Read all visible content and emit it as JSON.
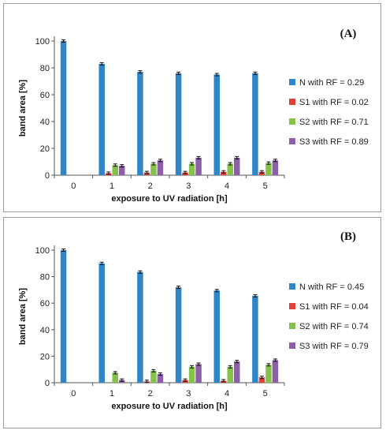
{
  "chart_data": [
    {
      "type": "bar",
      "panel_label": "(A)",
      "categories": [
        "0",
        "1",
        "2",
        "3",
        "4",
        "5"
      ],
      "series": [
        {
          "name": "N with RF = 0.29",
          "color": "#2e86c9",
          "values": [
            100,
            83,
            77,
            76,
            75,
            76
          ]
        },
        {
          "name": "S1 with RF = 0.02",
          "color": "#e2413a",
          "values": [
            0,
            1.5,
            2,
            2,
            2.5,
            2.5
          ]
        },
        {
          "name": "S2 with RF = 0.71",
          "color": "#86c24a",
          "values": [
            0,
            7.5,
            8.5,
            8.5,
            8.5,
            9
          ]
        },
        {
          "name": "S3 with RF = 0.89",
          "color": "#8c5fa8",
          "values": [
            0,
            7,
            11,
            13,
            13,
            11
          ]
        }
      ],
      "xlabel": "exposure to UV radiation [h]",
      "ylabel": "band area [%]",
      "ylim": [
        0,
        100
      ],
      "yticks": [
        0,
        20,
        40,
        60,
        80,
        100
      ],
      "legend_position": "right",
      "error_bars": true
    },
    {
      "type": "bar",
      "panel_label": "(B)",
      "categories": [
        "0",
        "1",
        "2",
        "3",
        "4",
        "5"
      ],
      "series": [
        {
          "name": "N with RF = 0.45",
          "color": "#2e86c9",
          "values": [
            100,
            90,
            83.5,
            72,
            69.5,
            65.5
          ]
        },
        {
          "name": "S1 with RF = 0.04",
          "color": "#e2413a",
          "values": [
            0,
            0,
            1,
            2,
            1.5,
            4
          ]
        },
        {
          "name": "S2 with RF = 0.74",
          "color": "#86c24a",
          "values": [
            0,
            7.5,
            9,
            12,
            12,
            13.5
          ]
        },
        {
          "name": "S3 with RF = 0.79",
          "color": "#8c5fa8",
          "values": [
            0,
            2,
            6.5,
            14,
            16,
            17
          ]
        }
      ],
      "xlabel": "exposure to UV radiation [h]",
      "ylabel": "band area [%]",
      "ylim": [
        0,
        100
      ],
      "yticks": [
        0,
        20,
        40,
        60,
        80,
        100
      ],
      "legend_position": "right",
      "error_bars": true
    }
  ]
}
